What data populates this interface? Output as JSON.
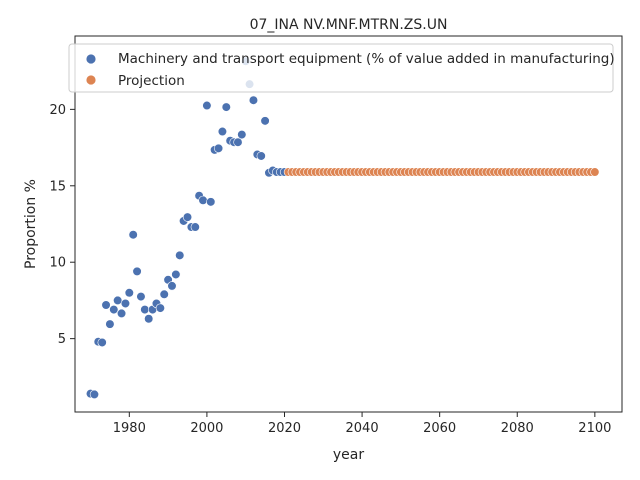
{
  "chart_data": {
    "type": "scatter",
    "title": "07_INA NV.MNF.MTRN.ZS.UN",
    "xlabel": "year",
    "ylabel": "Proportion %",
    "xlim": [
      1966,
      2107
    ],
    "ylim": [
      0.2,
      24.8
    ],
    "xticks": [
      1980,
      2000,
      2020,
      2040,
      2060,
      2080,
      2100
    ],
    "yticks": [
      5,
      10,
      15,
      20
    ],
    "grid": false,
    "legend_position": "top",
    "colors": {
      "historical": "#4c72b0",
      "projection": "#dd8452"
    },
    "series": [
      {
        "name": "Machinery and transport equipment (% of value added in manufacturing)",
        "color": "#4c72b0",
        "points": [
          [
            1970,
            1.4
          ],
          [
            1971,
            1.35
          ],
          [
            1972,
            4.8
          ],
          [
            1973,
            4.75
          ],
          [
            1974,
            7.2
          ],
          [
            1975,
            5.95
          ],
          [
            1976,
            6.9
          ],
          [
            1977,
            7.5
          ],
          [
            1978,
            6.65
          ],
          [
            1979,
            7.3
          ],
          [
            1980,
            8.0
          ],
          [
            1981,
            11.8
          ],
          [
            1982,
            9.4
          ],
          [
            1983,
            7.75
          ],
          [
            1984,
            6.9
          ],
          [
            1985,
            6.3
          ],
          [
            1986,
            6.9
          ],
          [
            1987,
            7.3
          ],
          [
            1988,
            7.0
          ],
          [
            1989,
            7.9
          ],
          [
            1990,
            8.85
          ],
          [
            1991,
            8.45
          ],
          [
            1992,
            9.2
          ],
          [
            1993,
            10.45
          ],
          [
            1994,
            12.7
          ],
          [
            1995,
            12.95
          ],
          [
            1996,
            12.3
          ],
          [
            1997,
            12.3
          ],
          [
            1998,
            14.35
          ],
          [
            1999,
            14.05
          ],
          [
            2000,
            20.25
          ],
          [
            2001,
            13.95
          ],
          [
            2002,
            17.35
          ],
          [
            2003,
            17.45
          ],
          [
            2004,
            18.55
          ],
          [
            2005,
            20.15
          ],
          [
            2006,
            17.95
          ],
          [
            2007,
            17.85
          ],
          [
            2008,
            17.85
          ],
          [
            2009,
            18.35
          ],
          [
            2010,
            23.15
          ],
          [
            2011,
            21.65
          ],
          [
            2012,
            20.6
          ],
          [
            2013,
            17.05
          ],
          [
            2014,
            16.95
          ],
          [
            2015,
            19.25
          ],
          [
            2016,
            15.85
          ],
          [
            2017,
            16.0
          ],
          [
            2018,
            15.9
          ],
          [
            2019,
            15.9
          ],
          [
            2020,
            15.9
          ]
        ]
      },
      {
        "name": "Projection",
        "color": "#dd8452",
        "start_year": 2021,
        "end_year": 2100,
        "value": 15.9
      }
    ]
  }
}
